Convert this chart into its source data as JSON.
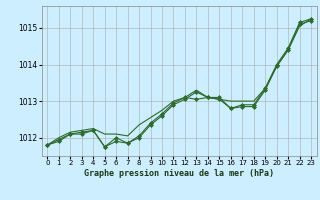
{
  "title": "Graphe pression niveau de la mer (hPa)",
  "bg_color": "#cceeff",
  "plot_bg_color": "#cceeff",
  "grid_color": "#aaaaaa",
  "line_color": "#2d6a2d",
  "marker_color": "#2d6a2d",
  "xlim": [
    -0.5,
    23.5
  ],
  "ylim": [
    1011.5,
    1015.6
  ],
  "yticks": [
    1012,
    1013,
    1014,
    1015
  ],
  "xticks": [
    0,
    1,
    2,
    3,
    4,
    5,
    6,
    7,
    8,
    9,
    10,
    11,
    12,
    13,
    14,
    15,
    16,
    17,
    18,
    19,
    20,
    21,
    22,
    23
  ],
  "series1": [
    1011.8,
    1011.9,
    1012.1,
    1012.1,
    1012.2,
    1011.75,
    1011.9,
    1011.85,
    1012.0,
    1012.35,
    1012.6,
    1012.9,
    1013.05,
    1013.25,
    1013.1,
    1013.1,
    1012.8,
    1012.9,
    1012.9,
    1013.35,
    1014.0,
    1014.45,
    1015.15,
    1015.25
  ],
  "series2": [
    1011.8,
    1011.95,
    1012.1,
    1012.15,
    1012.2,
    1011.75,
    1012.0,
    1011.85,
    1012.05,
    1012.4,
    1012.65,
    1012.95,
    1013.1,
    1013.05,
    1013.1,
    1013.05,
    1012.8,
    1012.85,
    1012.85,
    1013.3,
    1013.95,
    1014.4,
    1015.1,
    1015.2
  ],
  "series3": [
    1011.8,
    1012.0,
    1012.15,
    1012.2,
    1012.25,
    1012.1,
    1012.1,
    1012.05,
    1012.35,
    1012.55,
    1012.75,
    1013.0,
    1013.1,
    1013.3,
    1013.1,
    1013.05,
    1013.0,
    1013.0,
    1013.0,
    1013.35,
    1013.95,
    1014.4,
    1015.05,
    1015.25
  ]
}
